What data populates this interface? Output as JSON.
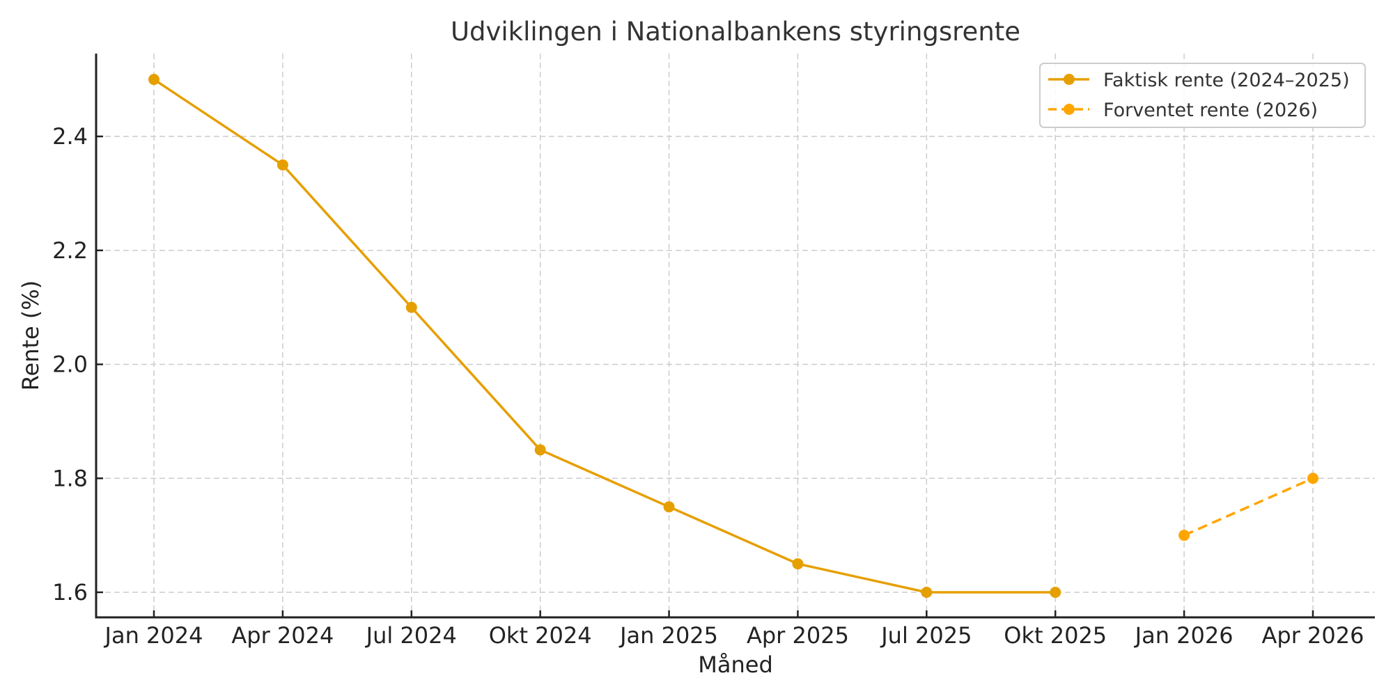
{
  "chart_data": {
    "type": "line",
    "title": "Udviklingen i Nationalbankens styringsrente",
    "xlabel": "Måned",
    "ylabel": "Rente (%)",
    "categories": [
      "Jan 2024",
      "Apr 2024",
      "Jul 2024",
      "Okt 2024",
      "Jan 2025",
      "Apr 2025",
      "Jul 2025",
      "Okt 2025",
      "Jan 2026",
      "Apr 2026"
    ],
    "y_ticks": [
      "1.6",
      "1.8",
      "2.0",
      "2.2",
      "2.4"
    ],
    "ylim": [
      1.555,
      2.545
    ],
    "grid": true,
    "legend_position": "upper right",
    "series": [
      {
        "name": "Faktisk rente (2024–2025)",
        "style": "solid",
        "color": "#E69F00",
        "x": [
          "Jan 2024",
          "Apr 2024",
          "Jul 2024",
          "Okt 2024",
          "Jan 2025",
          "Apr 2025",
          "Jul 2025",
          "Okt 2025"
        ],
        "values": [
          2.5,
          2.35,
          2.1,
          1.85,
          1.75,
          1.65,
          1.6,
          1.6
        ]
      },
      {
        "name": "Forventet rente (2026)",
        "style": "dashed",
        "color": "#FFA500",
        "x": [
          "Jan 2026",
          "Apr 2026"
        ],
        "values": [
          1.7,
          1.8
        ]
      }
    ]
  }
}
